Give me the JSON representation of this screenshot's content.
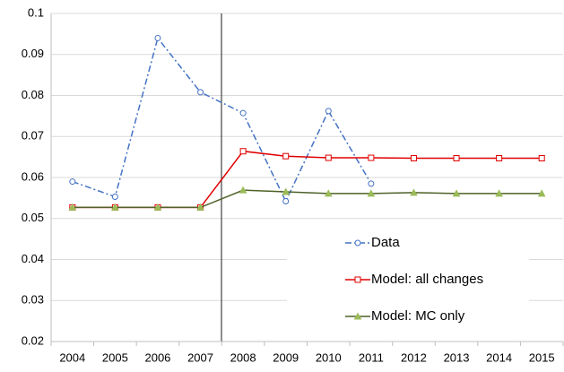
{
  "chart_data": {
    "type": "line",
    "categories": [
      "2004",
      "2005",
      "2006",
      "2007",
      "2008",
      "2009",
      "2010",
      "2011",
      "2012",
      "2013",
      "2014",
      "2015"
    ],
    "series": [
      {
        "name": "Data",
        "color": "#4472c4",
        "line_style": "dashdot",
        "marker": "circle",
        "values": [
          0.059,
          0.0553,
          0.094,
          0.0808,
          0.0757,
          0.0542,
          0.0762,
          0.0585,
          null,
          null,
          null,
          null
        ]
      },
      {
        "name": "Model: all changes",
        "color": "#e00000",
        "line_style": "solid",
        "marker": "square",
        "values": [
          0.0527,
          0.0527,
          0.0527,
          0.0527,
          0.0664,
          0.0652,
          0.0648,
          0.0648,
          0.0647,
          0.0647,
          0.0647,
          0.0647
        ]
      },
      {
        "name": "Model: MC only",
        "color": "#4f6228",
        "marker_color": "#9bbb59",
        "line_style": "solid",
        "marker": "triangle",
        "values": [
          0.0527,
          0.0527,
          0.0527,
          0.0527,
          0.0569,
          0.0565,
          0.0561,
          0.0561,
          0.0563,
          0.0561,
          0.0561,
          0.0561
        ]
      }
    ],
    "ylim": [
      0.02,
      0.1
    ],
    "yticks": [
      0.02,
      0.03,
      0.04,
      0.05,
      0.06,
      0.07,
      0.08,
      0.09,
      0.1
    ],
    "grid": true
  }
}
